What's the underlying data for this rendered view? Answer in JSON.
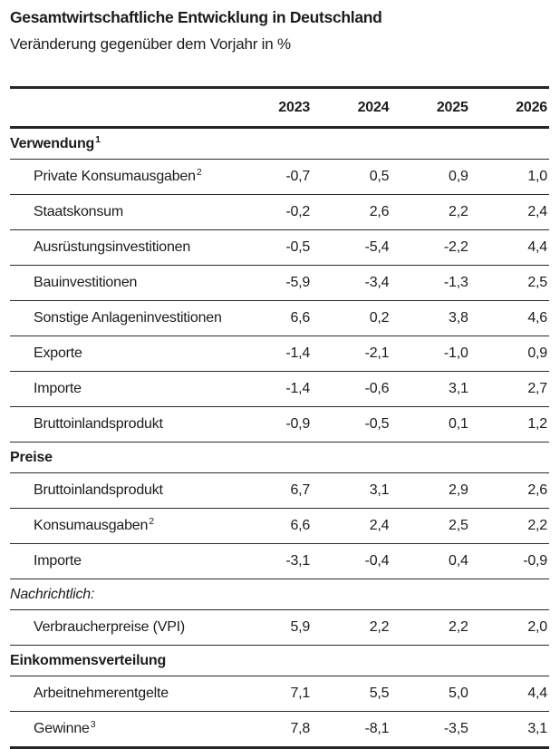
{
  "title": "Gesamtwirtschaftliche Entwicklung in Deutschland",
  "subtitle": "Veränderung gegenüber dem Vorjahr in %",
  "table": {
    "year_columns": [
      "2023",
      "2024",
      "2025",
      "2026"
    ],
    "rows": [
      {
        "type": "section",
        "label": "Verwendung",
        "sup": "1"
      },
      {
        "type": "data",
        "label": "Private Konsumausgaben",
        "sup": "2",
        "values": [
          "-0,7",
          "0,5",
          "0,9",
          "1,0"
        ]
      },
      {
        "type": "data",
        "label": "Staatskonsum",
        "sup": "",
        "values": [
          "-0,2",
          "2,6",
          "2,2",
          "2,4"
        ]
      },
      {
        "type": "data",
        "label": "Ausrüstungsinvestitionen",
        "sup": "",
        "values": [
          "-0,5",
          "-5,4",
          "-2,2",
          "4,4"
        ]
      },
      {
        "type": "data",
        "label": "Bauinvestitionen",
        "sup": "",
        "values": [
          "-5,9",
          "-3,4",
          "-1,3",
          "2,5"
        ]
      },
      {
        "type": "data",
        "label": "Sonstige Anlageninvestitionen",
        "sup": "",
        "values": [
          "6,6",
          "0,2",
          "3,8",
          "4,6"
        ]
      },
      {
        "type": "data",
        "label": "Exporte",
        "sup": "",
        "values": [
          "-1,4",
          "-2,1",
          "-1,0",
          "0,9"
        ]
      },
      {
        "type": "data",
        "label": "Importe",
        "sup": "",
        "values": [
          "-1,4",
          "-0,6",
          "3,1",
          "2,7"
        ]
      },
      {
        "type": "data",
        "label": "Bruttoinlandsprodukt",
        "sup": "",
        "values": [
          "-0,9",
          "-0,5",
          "0,1",
          "1,2"
        ]
      },
      {
        "type": "section",
        "label": "Preise",
        "sup": ""
      },
      {
        "type": "data",
        "label": "Bruttoinlandsprodukt",
        "sup": "",
        "values": [
          "6,7",
          "3,1",
          "2,9",
          "2,6"
        ]
      },
      {
        "type": "data",
        "label": "Konsumausgaben",
        "sup": "2",
        "values": [
          "6,6",
          "2,4",
          "2,5",
          "2,2"
        ]
      },
      {
        "type": "data",
        "label": "Importe",
        "sup": "",
        "values": [
          "-3,1",
          "-0,4",
          "0,4",
          "-0,9"
        ]
      },
      {
        "type": "section-italic",
        "label": "Nachrichtlich:",
        "sup": ""
      },
      {
        "type": "data",
        "label": "Verbraucherpreise (VPI)",
        "sup": "",
        "values": [
          "5,9",
          "2,2",
          "2,2",
          "2,0"
        ]
      },
      {
        "type": "section",
        "label": "Einkommensverteilung",
        "sup": ""
      },
      {
        "type": "data",
        "label": "Arbeitnehmerentgelte",
        "sup": "",
        "values": [
          "7,1",
          "5,5",
          "5,0",
          "4,4"
        ]
      },
      {
        "type": "data",
        "label": "Gewinne",
        "sup": "3",
        "values": [
          "7,8",
          "-8,1",
          "-3,5",
          "3,1"
        ]
      }
    ]
  }
}
